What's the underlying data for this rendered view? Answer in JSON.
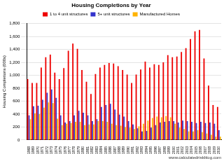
{
  "chart_data": {
    "type": "bar",
    "title": "Housing Completions by Year",
    "y_label": "Housing Completions (000s)",
    "annotations": [
      "www.calculatedriskblog.com"
    ],
    "categories": [
      "1968",
      "1969",
      "1970",
      "1971",
      "1972",
      "1973",
      "1974",
      "1975",
      "1976",
      "1977",
      "1978",
      "1979",
      "1980",
      "1981",
      "1982",
      "1983",
      "1984",
      "1985",
      "1986",
      "1987",
      "1988",
      "1989",
      "1990",
      "1991",
      "1992",
      "1993",
      "1994",
      "1995",
      "1996",
      "1997",
      "1998",
      "1999",
      "2000",
      "2001",
      "2002",
      "2003",
      "2004",
      "2005",
      "2006",
      "2007",
      "2008",
      "2009",
      "2010"
    ],
    "series": [
      {
        "name": "1 to 4 unit structures",
        "color": "#ee0000",
        "values": [
          940,
          880,
          880,
          1120,
          1280,
          1320,
          1040,
          940,
          1110,
          1380,
          1490,
          1410,
          1080,
          900,
          710,
          1020,
          1120,
          1160,
          1190,
          1180,
          1140,
          1080,
          1010,
          880,
          1010,
          1090,
          1210,
          1120,
          1170,
          1160,
          1200,
          1310,
          1280,
          1290,
          1360,
          1420,
          1560,
          1680,
          1700,
          1260,
          840,
          540,
          510
        ]
      },
      {
        "name": "5+ unit structures",
        "color": "#3333cc",
        "values": [
          380,
          520,
          530,
          620,
          730,
          780,
          650,
          380,
          270,
          290,
          380,
          450,
          420,
          380,
          290,
          320,
          510,
          540,
          560,
          470,
          390,
          360,
          290,
          240,
          180,
          130,
          140,
          190,
          230,
          270,
          280,
          290,
          290,
          270,
          300,
          290,
          280,
          260,
          280,
          260,
          270,
          250,
          150
        ]
      },
      {
        "name": "Manufactured Homes",
        "color": "#ffb300",
        "values": [
          320,
          410,
          400,
          500,
          580,
          570,
          330,
          230,
          250,
          260,
          280,
          280,
          230,
          240,
          240,
          290,
          290,
          280,
          250,
          230,
          220,
          200,
          190,
          170,
          210,
          250,
          300,
          340,
          360,
          350,
          370,
          350,
          250,
          190,
          170,
          130,
          130,
          150,
          120,
          100,
          80,
          50,
          50
        ]
      }
    ],
    "ylim": [
      0,
      1800
    ],
    "yticks": [
      0,
      200,
      400,
      600,
      800,
      {
        "value": 1000,
        "label": "1,000"
      },
      {
        "value": 1200,
        "label": "1,200"
      },
      {
        "value": 1400,
        "label": "1,400"
      },
      {
        "value": 1600,
        "label": "1,600"
      },
      {
        "value": 1800,
        "label": "1,800"
      }
    ],
    "grid": true,
    "legend": "top"
  }
}
